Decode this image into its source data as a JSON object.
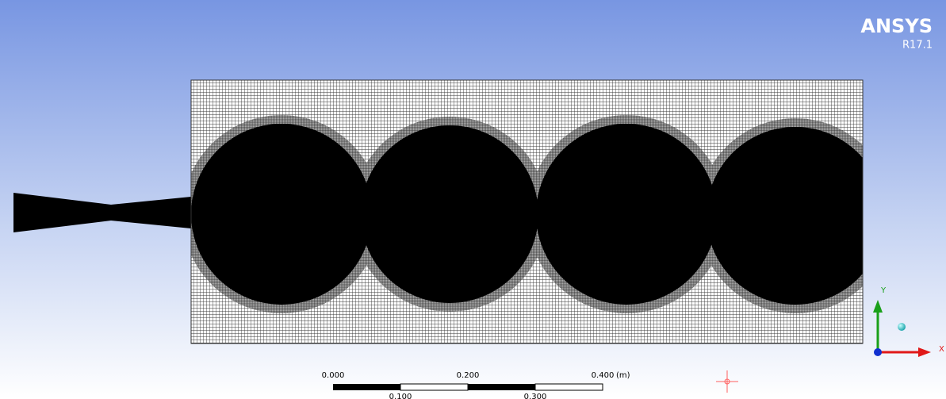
{
  "logo": {
    "name": "ANSYS",
    "version": "R17.1"
  },
  "scale_bar": {
    "top_labels": [
      "0.000",
      "0.200",
      "0.400"
    ],
    "unit": "(m)",
    "bottom_labels": [
      "0.100",
      "0.300"
    ]
  },
  "triad": {
    "y": "Y",
    "x": "X"
  }
}
